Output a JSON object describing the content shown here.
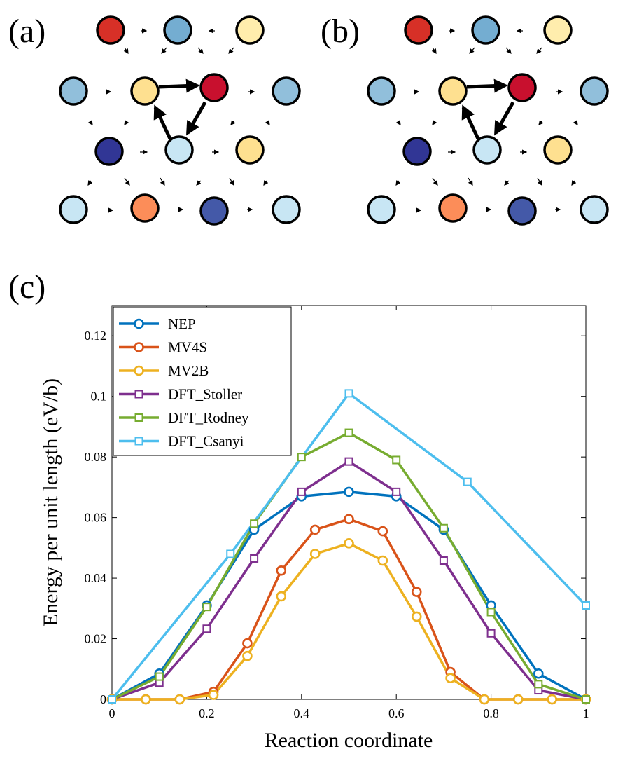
{
  "panels": {
    "a": {
      "label": "(a)"
    },
    "b": {
      "label": "(b)"
    },
    "c": {
      "label": "(c)"
    }
  },
  "colors": {
    "dark_red": "#d73027",
    "crimson": "#c8102e",
    "orange": "#fc8d59",
    "light_yellow": "#fee090",
    "pale_yellow": "#ffedad",
    "light_blue": "#91bfdb",
    "mid_blue": "#74add1",
    "pale_blue": "#c8e6f4",
    "navy": "#313695",
    "royal_blue": "#4459a8"
  },
  "lattice_a": {
    "atoms": [
      {
        "id": "r1c1",
        "color": "dark_red"
      },
      {
        "id": "r1c2",
        "color": "mid_blue"
      },
      {
        "id": "r1c3",
        "color": "pale_yellow"
      },
      {
        "id": "r2c1",
        "color": "light_blue"
      },
      {
        "id": "r2c2",
        "color": "light_yellow"
      },
      {
        "id": "r2c3",
        "color": "crimson"
      },
      {
        "id": "r2c4",
        "color": "light_blue"
      },
      {
        "id": "r3c1",
        "color": "navy"
      },
      {
        "id": "r3c2",
        "color": "pale_blue"
      },
      {
        "id": "r3c3",
        "color": "light_yellow"
      },
      {
        "id": "r4c1",
        "color": "pale_blue"
      },
      {
        "id": "r4c2",
        "color": "orange"
      },
      {
        "id": "r4c3",
        "color": "royal_blue"
      },
      {
        "id": "r4c4",
        "color": "pale_blue"
      }
    ]
  },
  "lattice_b": {
    "atoms": [
      {
        "id": "r1c1",
        "color": "dark_red"
      },
      {
        "id": "r1c2",
        "color": "mid_blue"
      },
      {
        "id": "r1c3",
        "color": "pale_yellow"
      },
      {
        "id": "r2c1",
        "color": "light_blue"
      },
      {
        "id": "r2c2",
        "color": "light_yellow"
      },
      {
        "id": "r2c3",
        "color": "crimson"
      },
      {
        "id": "r2c4",
        "color": "light_blue"
      },
      {
        "id": "r3c1",
        "color": "navy"
      },
      {
        "id": "r3c2",
        "color": "pale_blue"
      },
      {
        "id": "r3c3",
        "color": "light_yellow"
      },
      {
        "id": "r4c1",
        "color": "pale_blue"
      },
      {
        "id": "r4c2",
        "color": "orange"
      },
      {
        "id": "r4c3",
        "color": "royal_blue"
      },
      {
        "id": "r4c4",
        "color": "pale_blue"
      }
    ]
  },
  "chart_data": {
    "type": "line",
    "title": "",
    "xlabel": "Reaction coordinate",
    "ylabel": "Energy per unit length (eV/b)",
    "xlim": [
      0,
      1
    ],
    "ylim": [
      0,
      0.13
    ],
    "xticks": [
      0,
      0.2,
      0.4,
      0.6,
      0.8,
      1
    ],
    "xtick_labels": [
      "0",
      "0.2",
      "0.4",
      "0.6",
      "0.8",
      "1"
    ],
    "yticks": [
      0,
      0.02,
      0.04,
      0.06,
      0.08,
      0.1,
      0.12
    ],
    "ytick_labels": [
      "0",
      "0.02",
      "0.04",
      "0.06",
      "0.08",
      "0.1",
      "0.12"
    ],
    "legend_position": "top-left",
    "series": [
      {
        "name": "NEP",
        "color": "#0072bd",
        "marker": "circle",
        "x": [
          0,
          0.1,
          0.2,
          0.3,
          0.4,
          0.5,
          0.6,
          0.7,
          0.8,
          0.9,
          1.0
        ],
        "y": [
          0,
          0.0085,
          0.031,
          0.056,
          0.067,
          0.0685,
          0.067,
          0.056,
          0.031,
          0.0085,
          0
        ]
      },
      {
        "name": "MV4S",
        "color": "#d95319",
        "marker": "circle",
        "x": [
          0,
          0.0714,
          0.1429,
          0.2143,
          0.2857,
          0.3571,
          0.4286,
          0.5,
          0.5714,
          0.6429,
          0.7143,
          0.7857,
          0.8571,
          0.9286,
          1.0
        ],
        "y": [
          0,
          0,
          0,
          0.0025,
          0.0185,
          0.0425,
          0.056,
          0.0595,
          0.0555,
          0.0355,
          0.009,
          0,
          0,
          0,
          0
        ]
      },
      {
        "name": "MV2B",
        "color": "#edb120",
        "marker": "circle",
        "x": [
          0,
          0.0714,
          0.1429,
          0.2143,
          0.2857,
          0.3571,
          0.4286,
          0.5,
          0.5714,
          0.6429,
          0.7143,
          0.7857,
          0.8571,
          0.9286,
          1.0
        ],
        "y": [
          0,
          0,
          0,
          0.0015,
          0.0143,
          0.034,
          0.048,
          0.0515,
          0.0458,
          0.0273,
          0.007,
          0,
          0,
          0,
          0
        ]
      },
      {
        "name": "DFT_Stoller",
        "color": "#7e2f8e",
        "marker": "square",
        "x": [
          0,
          0.1,
          0.2,
          0.3,
          0.4,
          0.5,
          0.6,
          0.7,
          0.8,
          0.9,
          1.0
        ],
        "y": [
          0,
          0.0055,
          0.0233,
          0.0465,
          0.0685,
          0.0785,
          0.0685,
          0.0458,
          0.0218,
          0.003,
          0
        ]
      },
      {
        "name": "DFT_Rodney",
        "color": "#77ac30",
        "marker": "square",
        "x": [
          0,
          0.1,
          0.2,
          0.3,
          0.4,
          0.5,
          0.6,
          0.7,
          0.8,
          0.9,
          1.0
        ],
        "y": [
          0,
          0.0075,
          0.0305,
          0.058,
          0.08,
          0.088,
          0.079,
          0.0565,
          0.0288,
          0.005,
          0
        ]
      },
      {
        "name": "DFT_Csanyi",
        "color": "#4dbeee",
        "marker": "square",
        "x": [
          0,
          0.25,
          0.5,
          0.75,
          1.0
        ],
        "y": [
          0,
          0.048,
          0.101,
          0.0718,
          0.031
        ]
      }
    ]
  }
}
